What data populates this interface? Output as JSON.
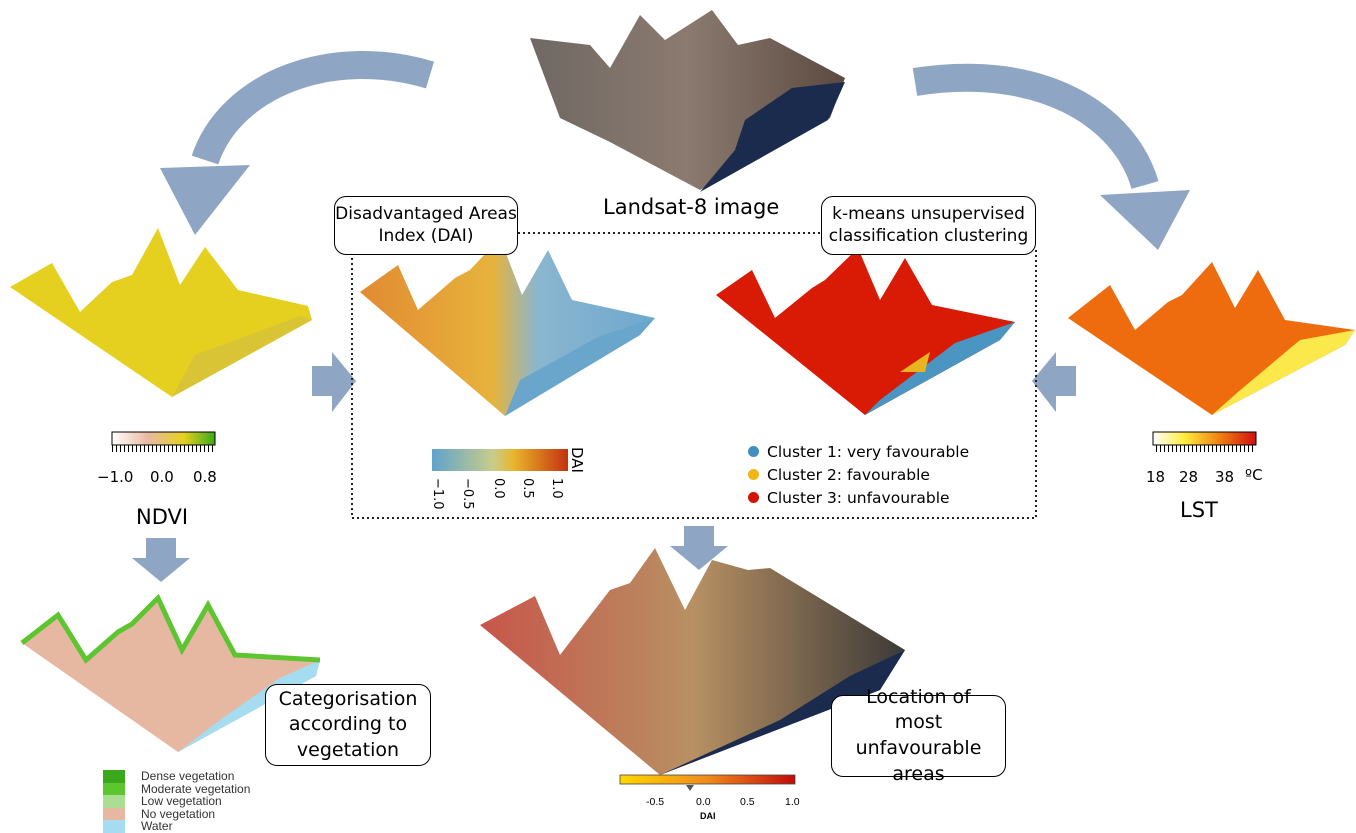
{
  "top_image_label": "Landsat-8 image",
  "dai_box": "Disadvantaged Areas Index (DAI)",
  "kmeans_box": "k-means unsupervised classification clustering",
  "ndvi": {
    "label": "NDVI",
    "ticks": [
      "−1.0",
      "0.0",
      "0.8"
    ]
  },
  "lst": {
    "label": "LST",
    "ticks": [
      "18",
      "28",
      "38",
      "ºC"
    ]
  },
  "dai_scale": {
    "title": "DAI",
    "ticks": [
      "−1.0",
      "−0.5",
      "0.0",
      "0.5",
      "1.0"
    ]
  },
  "clusters": [
    {
      "label": "Cluster 1: very favourable",
      "color": "#3f8fc0"
    },
    {
      "label": "Cluster 2: favourable",
      "color": "#f0b517"
    },
    {
      "label": "Cluster 3: unfavourable",
      "color": "#d21406"
    }
  ],
  "veg_box": "Categorisation according to vegetation",
  "veg_legend": [
    {
      "label": "Dense vegetation",
      "color": "#3aa81a"
    },
    {
      "label": "Moderate vegetation",
      "color": "#5cc530"
    },
    {
      "label": "Low vegetation",
      "color": "#a9de93"
    },
    {
      "label": "No vegetation",
      "color": "#e6b8a2"
    },
    {
      "label": "Water",
      "color": "#a6dcef"
    }
  ],
  "location_box": "Location of most unfavourable areas",
  "bottom_scale": {
    "title": "DAI",
    "ticks": [
      "-0.5",
      "0.0",
      "0.5",
      "1.0"
    ]
  },
  "colors": {
    "arrow": "#8fa5c4",
    "ndvi_map": "#e6d020",
    "dai_orange": "#e38b2b",
    "dai_blue": "#7aaed0",
    "lst_map": "#ef6f0c",
    "landsat": "#7d6a5e",
    "sea": "#1a2b4d"
  }
}
